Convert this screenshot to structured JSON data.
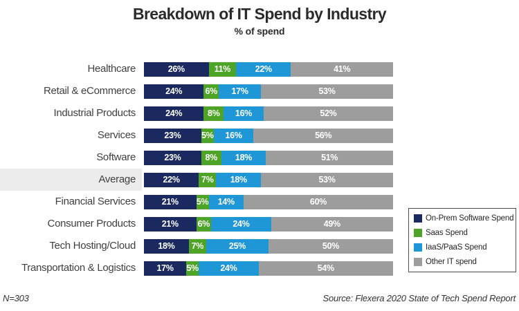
{
  "title": "Breakdown of IT Spend by Industry",
  "subtitle": "% of spend",
  "footnotes": {
    "left": "N=303",
    "right": "Source: Flexera 2020 State of Tech Spend Report"
  },
  "chart_data": {
    "type": "bar",
    "orientation": "horizontal",
    "stacked": true,
    "xlim": [
      0,
      100
    ],
    "unit": "%",
    "grid": false,
    "legend_position": "right",
    "title": "Breakdown of IT Spend by Industry",
    "subtitle": "% of spend",
    "categories": [
      "Healthcare",
      "Retail & eCommerce",
      "Industrial Products",
      "Services",
      "Software",
      "Average",
      "Financial Services",
      "Consumer Products",
      "Tech Hosting/Cloud",
      "Transportation & Logistics"
    ],
    "highlighted_category": "Average",
    "series": [
      {
        "name": "On-Prem Software Spend",
        "key": "on-prem-software-spend",
        "color": "#1a2a60",
        "values": [
          26,
          24,
          24,
          23,
          23,
          22,
          21,
          21,
          18,
          17
        ]
      },
      {
        "name": "Saas Spend",
        "key": "saas-spend",
        "color": "#4da426",
        "values": [
          11,
          6,
          8,
          5,
          8,
          7,
          5,
          6,
          7,
          5
        ]
      },
      {
        "name": "IaaS/PaaS Spend",
        "key": "iaas-paas-spend",
        "color": "#1f96d5",
        "values": [
          22,
          17,
          16,
          16,
          18,
          18,
          14,
          24,
          25,
          24
        ]
      },
      {
        "name": "Other IT spend",
        "key": "other-it-spend",
        "color": "#9d9d9d",
        "values": [
          41,
          53,
          52,
          56,
          51,
          53,
          60,
          49,
          50,
          54
        ]
      }
    ],
    "value_label_suffix": "%",
    "highlight_color": "#ececec",
    "bar_pixel_scale": 3.6
  }
}
